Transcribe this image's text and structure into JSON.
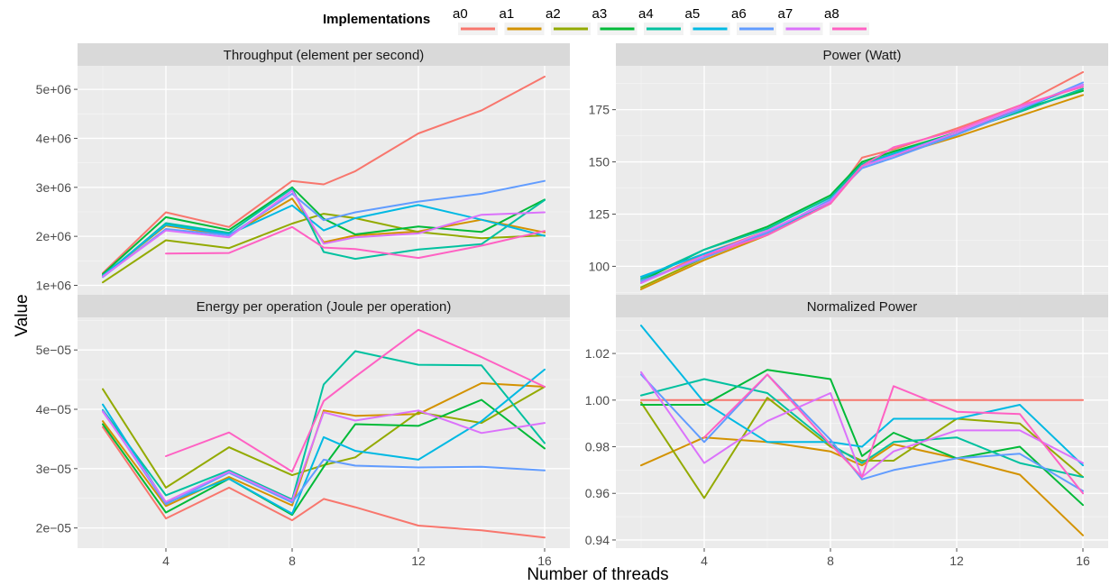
{
  "legend": {
    "title": "Implementations",
    "keys": [
      "a0",
      "a1",
      "a2",
      "a3",
      "a4",
      "a5",
      "a6",
      "a7",
      "a8"
    ],
    "colors": [
      "#F8766D",
      "#D39200",
      "#93AA00",
      "#00BA38",
      "#00C19F",
      "#00B9E3",
      "#619CFF",
      "#DB72FB",
      "#FF61C3"
    ]
  },
  "axes": {
    "xlabel": "Number of threads",
    "ylabel": "Value"
  },
  "chart_data": [
    {
      "type": "line",
      "title": "Throughput (element per second)",
      "x_ticks": [
        4,
        8,
        12,
        16
      ],
      "xlim": [
        1.2,
        16.8
      ],
      "y_ticks": [
        1000000,
        2000000,
        3000000,
        4000000,
        5000000
      ],
      "y_tick_labels": [
        "1e+06",
        "2e+06",
        "3e+06",
        "4e+06",
        "5e+06"
      ],
      "ylim": [
        770000,
        5480000
      ],
      "series": [
        {
          "name": "a0",
          "x": [
            2,
            4,
            6,
            8,
            9,
            10,
            12,
            14,
            16
          ],
          "values": [
            1250000,
            2490000,
            2190000,
            3130000,
            3060000,
            3330000,
            4100000,
            4570000,
            5260000
          ]
        },
        {
          "name": "a1",
          "x": [
            2,
            4,
            6,
            8,
            9,
            10,
            12,
            14,
            16
          ],
          "values": [
            1200000,
            2220000,
            2020000,
            2770000,
            1880000,
            2020000,
            2100000,
            2340000,
            2080000
          ]
        },
        {
          "name": "a2",
          "x": [
            2,
            4,
            6,
            8,
            9,
            10,
            12,
            14,
            16
          ],
          "values": [
            1060000,
            1920000,
            1760000,
            2260000,
            2460000,
            2370000,
            2090000,
            1960000,
            2020000
          ]
        },
        {
          "name": "a3",
          "x": [
            2,
            4,
            6,
            8,
            9,
            10,
            12,
            14,
            16
          ],
          "values": [
            1230000,
            2390000,
            2130000,
            3000000,
            2360000,
            2040000,
            2200000,
            2090000,
            2750000
          ]
        },
        {
          "name": "a4",
          "x": [
            2,
            4,
            6,
            8,
            9,
            10,
            12,
            14,
            16
          ],
          "values": [
            1180000,
            2270000,
            2070000,
            2980000,
            1680000,
            1540000,
            1730000,
            1840000,
            2740000
          ]
        },
        {
          "name": "a5",
          "x": [
            2,
            4,
            6,
            8,
            9,
            10,
            12,
            14,
            16
          ],
          "values": [
            1200000,
            2240000,
            2040000,
            2630000,
            2120000,
            2370000,
            2640000,
            2340000,
            2010000
          ]
        },
        {
          "name": "a6",
          "x": [
            2,
            4,
            6,
            8,
            9,
            10,
            12,
            14,
            16
          ],
          "values": [
            1170000,
            2150000,
            2020000,
            2870000,
            2330000,
            2490000,
            2710000,
            2870000,
            3130000
          ]
        },
        {
          "name": "a7",
          "x": [
            2,
            4,
            6,
            8,
            9,
            10,
            12,
            14,
            16
          ],
          "values": [
            1180000,
            2120000,
            1980000,
            2930000,
            1850000,
            1980000,
            2060000,
            2440000,
            2490000
          ]
        },
        {
          "name": "a8",
          "x": [
            4,
            6,
            8,
            9,
            10,
            12,
            14,
            16
          ],
          "values": [
            1650000,
            1660000,
            2190000,
            1770000,
            1740000,
            1560000,
            1810000,
            2110000
          ]
        }
      ]
    },
    {
      "type": "line",
      "title": "Power (Watt)",
      "x_ticks": [
        4,
        8,
        12,
        16
      ],
      "xlim": [
        1.2,
        16.8
      ],
      "y_ticks": [
        100,
        125,
        150,
        175
      ],
      "y_tick_labels": [
        "100",
        "125",
        "150",
        "175"
      ],
      "ylim": [
        85.5,
        196
      ],
      "series": [
        {
          "name": "a0",
          "x": [
            2,
            4,
            6,
            8,
            9,
            10,
            12,
            14,
            16
          ],
          "values": [
            92,
            106,
            117,
            131,
            152,
            156,
            166,
            177,
            193
          ]
        },
        {
          "name": "a1",
          "x": [
            2,
            4,
            6,
            8,
            9,
            10,
            12,
            14,
            16
          ],
          "values": [
            89,
            103,
            115,
            130,
            148,
            153,
            162,
            172,
            182
          ]
        },
        {
          "name": "a2",
          "x": [
            2,
            4,
            6,
            8,
            9,
            10,
            12,
            14,
            16
          ],
          "values": [
            90,
            104,
            116,
            131,
            149,
            154,
            164,
            174,
            185
          ]
        },
        {
          "name": "a3",
          "x": [
            2,
            4,
            6,
            8,
            9,
            10,
            12,
            14,
            16
          ],
          "values": [
            93,
            108,
            119,
            134,
            150,
            155,
            164,
            175,
            184
          ]
        },
        {
          "name": "a4",
          "x": [
            2,
            4,
            6,
            8,
            9,
            10,
            12,
            14,
            16
          ],
          "values": [
            94,
            108,
            118,
            133,
            149,
            154,
            164,
            174,
            185
          ]
        },
        {
          "name": "a5",
          "x": [
            2,
            4,
            6,
            8,
            9,
            10,
            12,
            14,
            16
          ],
          "values": [
            95,
            106,
            116,
            131,
            148,
            154,
            163,
            175,
            187
          ]
        },
        {
          "name": "a6",
          "x": [
            2,
            4,
            6,
            8,
            9,
            10,
            12,
            14,
            16
          ],
          "values": [
            93,
            104,
            116,
            132,
            147,
            152,
            163,
            175,
            188
          ]
        },
        {
          "name": "a7",
          "x": [
            2,
            4,
            6,
            8,
            9,
            10,
            12,
            14,
            16
          ],
          "values": [
            92,
            105,
            117,
            131,
            148,
            153,
            164,
            176,
            187
          ]
        },
        {
          "name": "a8",
          "x": [
            4,
            6,
            8,
            9,
            10,
            12,
            14,
            16
          ],
          "values": [
            105,
            115,
            130,
            148,
            157,
            165,
            177,
            186
          ]
        }
      ]
    },
    {
      "type": "line",
      "title": "Energy per operation (Joule per operation)",
      "x_ticks": [
        4,
        8,
        12,
        16
      ],
      "xlim": [
        1.2,
        16.8
      ],
      "y_ticks": [
        2e-05,
        3e-05,
        4e-05,
        5e-05
      ],
      "y_tick_labels": [
        "2e−05",
        "3e−05",
        "4e−05",
        "5e−05"
      ],
      "ylim": [
        1.66e-05,
        5.55e-05
      ],
      "series": [
        {
          "name": "a0",
          "x": [
            2,
            4,
            6,
            8,
            9,
            10,
            12,
            14,
            16
          ],
          "values": [
            3.7e-05,
            2.16e-05,
            2.68e-05,
            2.13e-05,
            2.49e-05,
            2.35e-05,
            2.04e-05,
            1.96e-05,
            1.84e-05
          ]
        },
        {
          "name": "a1",
          "x": [
            2,
            4,
            6,
            8,
            9,
            10,
            12,
            14,
            16
          ],
          "values": [
            3.8e-05,
            2.37e-05,
            2.86e-05,
            2.38e-05,
            3.98e-05,
            3.89e-05,
            3.92e-05,
            4.44e-05,
            4.38e-05
          ]
        },
        {
          "name": "a2",
          "x": [
            2,
            4,
            6,
            8,
            9,
            10,
            12,
            14,
            16
          ],
          "values": [
            4.34e-05,
            2.68e-05,
            3.36e-05,
            2.89e-05,
            3.06e-05,
            3.19e-05,
            3.95e-05,
            3.77e-05,
            4.38e-05
          ]
        },
        {
          "name": "a3",
          "x": [
            2,
            4,
            6,
            8,
            9,
            10,
            12,
            14,
            16
          ],
          "values": [
            3.75e-05,
            2.26e-05,
            2.83e-05,
            2.22e-05,
            3.03e-05,
            3.75e-05,
            3.72e-05,
            4.16e-05,
            3.34e-05
          ]
        },
        {
          "name": "a4",
          "x": [
            2,
            4,
            6,
            8,
            9,
            10,
            12,
            14,
            16
          ],
          "values": [
            3.99e-05,
            2.55e-05,
            2.97e-05,
            2.48e-05,
            4.42e-05,
            4.98e-05,
            4.75e-05,
            4.74e-05,
            3.43e-05
          ]
        },
        {
          "name": "a5",
          "x": [
            2,
            4,
            6,
            8,
            9,
            10,
            12,
            14,
            16
          ],
          "values": [
            4.08e-05,
            2.42e-05,
            2.83e-05,
            2.24e-05,
            3.53e-05,
            3.3e-05,
            3.15e-05,
            3.8e-05,
            4.67e-05
          ]
        },
        {
          "name": "a6",
          "x": [
            2,
            4,
            6,
            8,
            9,
            10,
            12,
            14,
            16
          ],
          "values": [
            3.98e-05,
            2.4e-05,
            2.93e-05,
            2.43e-05,
            3.15e-05,
            3.05e-05,
            3.02e-05,
            3.03e-05,
            2.97e-05
          ]
        },
        {
          "name": "a7",
          "x": [
            2,
            4,
            6,
            8,
            9,
            10,
            12,
            14,
            16
          ],
          "values": [
            3.96e-05,
            2.44e-05,
            2.95e-05,
            2.46e-05,
            3.95e-05,
            3.81e-05,
            3.98e-05,
            3.6e-05,
            3.77e-05
          ]
        },
        {
          "name": "a8",
          "x": [
            4,
            6,
            8,
            9,
            10,
            12,
            14,
            16
          ],
          "values": [
            3.21e-05,
            3.61e-05,
            2.95e-05,
            4.14e-05,
            4.55e-05,
            5.34e-05,
            4.88e-05,
            4.38e-05
          ]
        }
      ]
    },
    {
      "type": "line",
      "title": "Normalized Power",
      "x_ticks": [
        4,
        8,
        12,
        16
      ],
      "xlim": [
        1.2,
        16.8
      ],
      "y_ticks": [
        0.94,
        0.96,
        0.98,
        1.0,
        1.02
      ],
      "y_tick_labels": [
        "0.94",
        "0.96",
        "0.98",
        "1.00",
        "1.02"
      ],
      "ylim": [
        0.9365,
        1.0355
      ],
      "series": [
        {
          "name": "a0",
          "x": [
            2,
            4,
            6,
            8,
            9,
            10,
            12,
            14,
            16
          ],
          "values": [
            1.0,
            1.0,
            1.0,
            1.0,
            1.0,
            1.0,
            1.0,
            1.0,
            1.0
          ]
        },
        {
          "name": "a1",
          "x": [
            2,
            4,
            6,
            8,
            9,
            10,
            12,
            14,
            16
          ],
          "values": [
            0.972,
            0.984,
            0.982,
            0.978,
            0.972,
            0.981,
            0.975,
            0.968,
            0.942
          ]
        },
        {
          "name": "a2",
          "x": [
            2,
            4,
            6,
            8,
            9,
            10,
            12,
            14,
            16
          ],
          "values": [
            0.999,
            0.958,
            1.001,
            0.98,
            0.974,
            0.974,
            0.992,
            0.99,
            0.967
          ]
        },
        {
          "name": "a3",
          "x": [
            2,
            4,
            6,
            8,
            9,
            10,
            12,
            14,
            16
          ],
          "values": [
            0.998,
            0.998,
            1.013,
            1.009,
            0.976,
            0.986,
            0.975,
            0.98,
            0.955
          ]
        },
        {
          "name": "a4",
          "x": [
            2,
            4,
            6,
            8,
            9,
            10,
            12,
            14,
            16
          ],
          "values": [
            1.002,
            1.009,
            1.003,
            0.981,
            0.973,
            0.982,
            0.984,
            0.973,
            0.967
          ]
        },
        {
          "name": "a5",
          "x": [
            2,
            4,
            6,
            8,
            9,
            10,
            12,
            14,
            16
          ],
          "values": [
            1.032,
            0.999,
            0.982,
            0.982,
            0.98,
            0.992,
            0.992,
            0.998,
            0.972
          ]
        },
        {
          "name": "a6",
          "x": [
            2,
            4,
            6,
            8,
            9,
            10,
            12,
            14,
            16
          ],
          "values": [
            1.011,
            0.982,
            1.011,
            0.983,
            0.966,
            0.97,
            0.975,
            0.977,
            0.961
          ]
        },
        {
          "name": "a7",
          "x": [
            2,
            4,
            6,
            8,
            9,
            10,
            12,
            14,
            16
          ],
          "values": [
            1.012,
            0.973,
            0.991,
            1.003,
            0.967,
            0.978,
            0.987,
            0.987,
            0.973
          ]
        },
        {
          "name": "a8",
          "x": [
            4,
            6,
            8,
            9,
            10,
            12,
            14,
            16
          ],
          "values": [
            0.984,
            1.011,
            0.981,
            0.967,
            1.006,
            0.995,
            0.994,
            0.96
          ]
        }
      ]
    }
  ]
}
